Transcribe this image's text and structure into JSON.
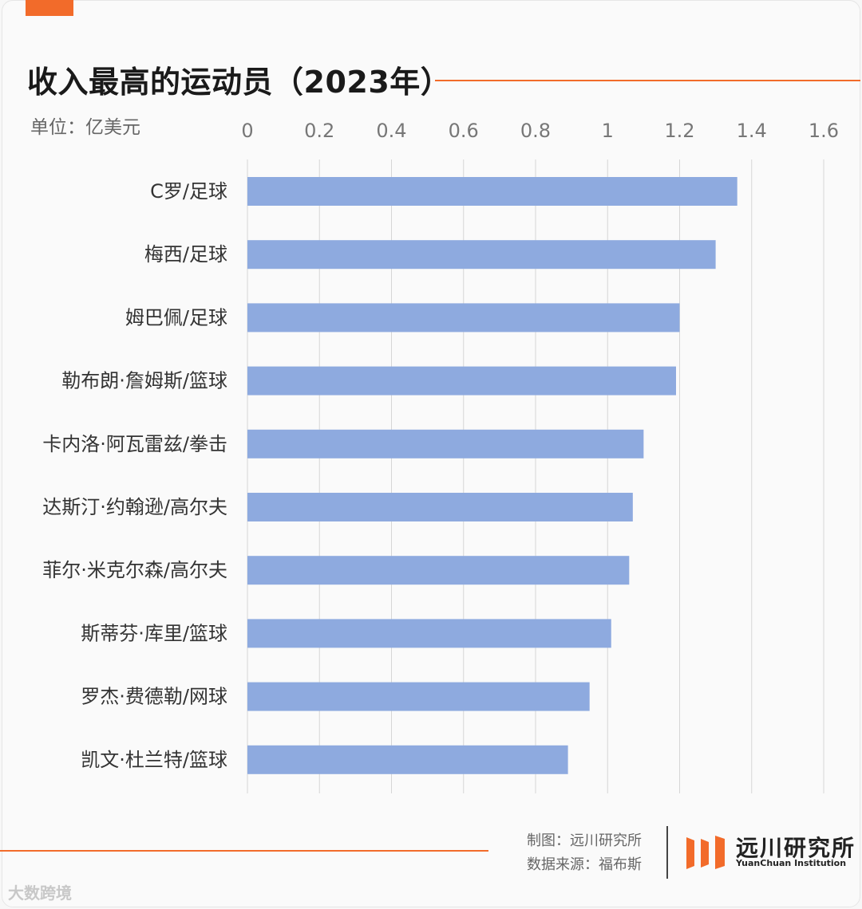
{
  "header": {
    "title": "收入最高的运动员（2023年）",
    "unit": "单位：亿美元"
  },
  "chart_data": {
    "type": "bar",
    "orientation": "horizontal",
    "categories": [
      "C罗/足球",
      "梅西/足球",
      "姆巴佩/足球",
      "勒布朗·詹姆斯/篮球",
      "卡内洛·阿瓦雷兹/拳击",
      "达斯汀·约翰逊/高尔夫",
      "菲尔·米克尔森/高尔夫",
      "斯蒂芬·库里/篮球",
      "罗杰·费德勒/网球",
      "凯文·杜兰特/篮球"
    ],
    "values": [
      1.36,
      1.3,
      1.2,
      1.19,
      1.1,
      1.07,
      1.06,
      1.01,
      0.95,
      0.89
    ],
    "xlim": [
      0,
      1.6
    ],
    "ticks": [
      "0",
      "0.2",
      "0.4",
      "0.6",
      "0.8",
      "1",
      "1.2",
      "1.4",
      "1.6"
    ],
    "tick_values": [
      0,
      0.2,
      0.4,
      0.6,
      0.8,
      1.0,
      1.2,
      1.4,
      1.6
    ],
    "grid": true,
    "bar_color": "#8eaadf"
  },
  "footer": {
    "credit_maker": "制图：远川研究所",
    "credit_source": "数据来源：福布斯",
    "logo_cn": "远川研究所",
    "logo_en": "YuanChuan Institution",
    "watermark": "大数跨境"
  },
  "colors": {
    "accent": "#f26b2a",
    "bar": "#8eaadf"
  }
}
